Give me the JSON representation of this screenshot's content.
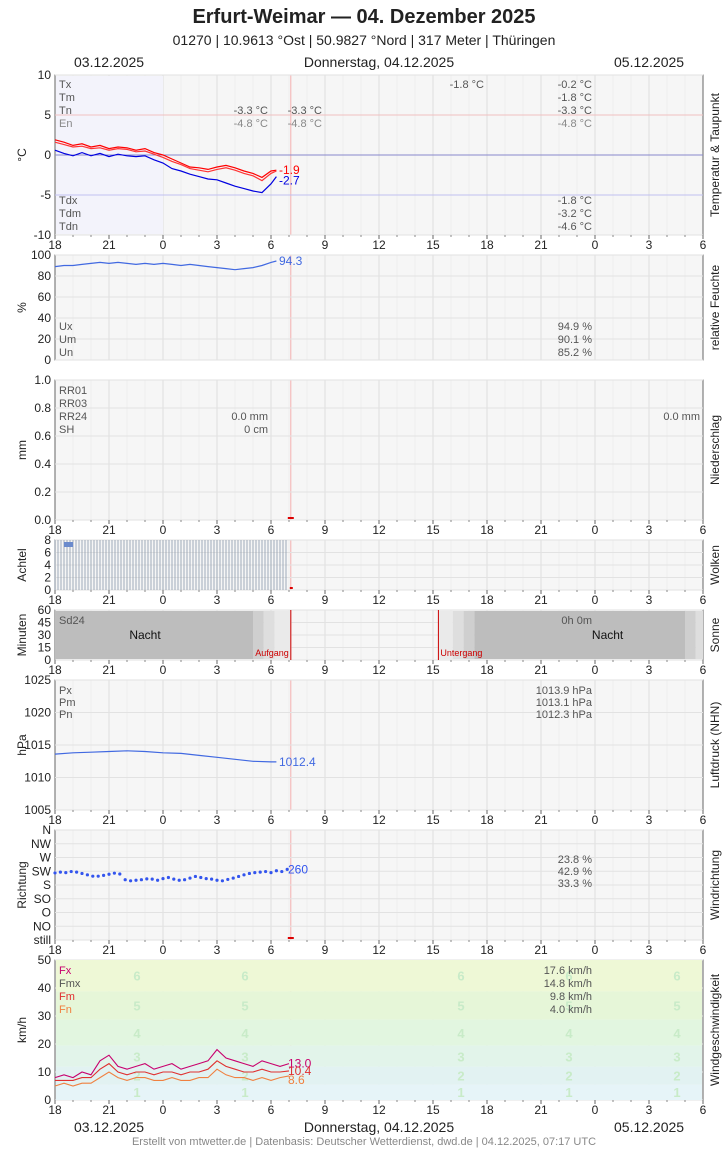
{
  "header": {
    "title": "Erfurt-Weimar  —  04. Dezember 2025",
    "subtitle": "01270  |  10.9613 °Ost  |  50.9827 °Nord  |  317 Meter  |  Thüringen"
  },
  "dates": {
    "left": "03.12.2025",
    "center": "Donnerstag, 04.12.2025",
    "right": "05.12.2025"
  },
  "footer": "Erstellt von mtwetter.de | Datenbasis: Deutscher Wetterdienst, dwd.de | 04.12.2025, 07:17 UTC",
  "x_ticks": [
    "18",
    "21",
    "0",
    "3",
    "6",
    "9",
    "12",
    "15",
    "18",
    "21",
    "0",
    "3",
    "6"
  ],
  "chart_data": [
    {
      "id": "temp",
      "type": "line",
      "side_label": "Temperatur & Taupunkt",
      "ylabel": "°C",
      "ylim": [
        -10,
        10
      ],
      "yticks": [
        "10",
        "5",
        "0",
        "-5",
        "-10"
      ],
      "stat_labels": [
        "Tx",
        "Tm",
        "Tn",
        "En",
        "Tdx",
        "Tdm",
        "Tdn"
      ],
      "stat_values_day1": {
        "Tn": "-3.3 °C",
        "En": "-4.8 °C"
      },
      "stat_values_day1b": {
        "Tn": "-3.3 °C",
        "En": "-4.8 °C"
      },
      "stat_values_day2": {
        "Tx": "-0.2 °C",
        "Tm": "-1.8 °C",
        "Tn": "-3.3 °C",
        "En": "-4.8 °C",
        "Tdx": "-1.8 °C",
        "Tdm": "-3.2 °C",
        "Tdn": "-4.6 °C"
      },
      "extra_label": "-1.8 °C",
      "end_labels": [
        "-1.9",
        "-2.7"
      ],
      "x": [
        -6,
        -5.5,
        -5,
        -4.5,
        -4,
        -3.5,
        -3,
        -2.5,
        -2,
        -1.5,
        -1,
        -0.5,
        0,
        0.5,
        1,
        1.5,
        2,
        2.5,
        3,
        3.5,
        4,
        4.5,
        5,
        5.5,
        6,
        6.3
      ],
      "series": [
        {
          "name": "Tx",
          "values": [
            1.9,
            1.6,
            1.2,
            1.4,
            1.0,
            1.2,
            0.8,
            1.0,
            0.9,
            0.6,
            0.8,
            0.3,
            0,
            -0.5,
            -1.0,
            -1.5,
            -1.6,
            -1.8,
            -1.5,
            -1.3,
            -1.6,
            -2.0,
            -2.3,
            -2.8,
            -2.0,
            -1.9
          ]
        },
        {
          "name": "Tm",
          "values": [
            1.6,
            1.3,
            1.0,
            1.1,
            0.8,
            0.9,
            0.6,
            0.8,
            0.7,
            0.4,
            0.5,
            0.1,
            -0.3,
            -0.8,
            -1.2,
            -1.7,
            -1.9,
            -2.1,
            -1.8,
            -1.6,
            -1.9,
            -2.3,
            -2.6,
            -3.2,
            -2.3,
            -2.0
          ]
        },
        {
          "name": "Td",
          "values": [
            0.6,
            0.2,
            -0.1,
            0.3,
            -0.1,
            0.2,
            -0.2,
            0.1,
            -0.1,
            -0.2,
            -0.1,
            -0.6,
            -1.0,
            -1.7,
            -2.0,
            -2.4,
            -2.7,
            -3.0,
            -3.1,
            -3.5,
            -3.9,
            -4.2,
            -4.5,
            -4.7,
            -3.6,
            -2.7
          ]
        }
      ],
      "colors": [
        "#ff0000",
        "#ff3333",
        "#0000e0"
      ]
    },
    {
      "id": "humidity",
      "type": "line",
      "side_label": "relative Feuchte",
      "ylabel": "%",
      "ylim": [
        0,
        100
      ],
      "yticks": [
        "100",
        "80",
        "60",
        "40",
        "20",
        "0"
      ],
      "stat_labels": [
        "Ux",
        "Um",
        "Un"
      ],
      "stat_values_day2": {
        "Ux": "94.9 %",
        "Um": "90.1 %",
        "Un": "85.2 %"
      },
      "end_label": "94.3",
      "x": [
        -6,
        -5.5,
        -5,
        -4.5,
        -4,
        -3.5,
        -3,
        -2.5,
        -2,
        -1.5,
        -1,
        -0.5,
        0,
        0.5,
        1,
        1.5,
        2,
        2.5,
        3,
        3.5,
        4,
        4.5,
        5,
        5.5,
        6,
        6.3
      ],
      "values": [
        89,
        90,
        90,
        91,
        92,
        93,
        92,
        93,
        92,
        91,
        92,
        91,
        92,
        91,
        90,
        91,
        90,
        89,
        88,
        87,
        86,
        87,
        88,
        90,
        93,
        94.3
      ],
      "color": "#4169e1"
    },
    {
      "id": "precip",
      "type": "bar",
      "side_label": "Niederschlag",
      "ylabel": "mm",
      "ylim": [
        0,
        1
      ],
      "yticks": [
        "1.0",
        "0.8",
        "0.6",
        "0.4",
        "0.2",
        "0.0"
      ],
      "stat_labels": [
        "RR01",
        "RR03",
        "RR24",
        "SH"
      ],
      "stat_values_day1": {
        "RR24": "0.0 mm",
        "SH": "0 cm"
      },
      "stat_values_day2": {
        "RR24": "0.0 mm"
      }
    },
    {
      "id": "clouds",
      "type": "bar",
      "side_label": "Wolken",
      "ylabel": "Achtel",
      "ylim": [
        0,
        8
      ],
      "yticks": [
        "8",
        "6",
        "4",
        "2",
        "0"
      ],
      "hours_start": -6,
      "hours_end": 7,
      "value": 8
    },
    {
      "id": "sun",
      "type": "bar",
      "side_label": "Sonne",
      "ylabel": "Minuten",
      "ylim": [
        0,
        60
      ],
      "yticks": [
        "60",
        "45",
        "30",
        "15",
        "0"
      ],
      "stat_labels": [
        "Sd24"
      ],
      "stat_value_day2": "0h 0m",
      "night_label": "Nacht",
      "sunrise_label": "Aufgang",
      "sunset_label": "Untergang",
      "sunrise_hour": 7.1,
      "sunset_hour": 15.3
    },
    {
      "id": "pressure",
      "type": "line",
      "side_label": "Luftdruck (NHN)",
      "ylabel": "hPa",
      "ylim": [
        1005,
        1025
      ],
      "yticks": [
        "1025",
        "1020",
        "1015",
        "1010",
        "1005"
      ],
      "stat_labels": [
        "Px",
        "Pm",
        "Pn"
      ],
      "stat_values_day2": {
        "Px": "1013.9 hPa",
        "Pm": "1013.1 hPa",
        "Pn": "1012.3 hPa"
      },
      "end_label": "1012.4",
      "x": [
        -6,
        -5,
        -4,
        -3,
        -2,
        -1,
        0,
        1,
        2,
        3,
        4,
        5,
        6,
        6.3
      ],
      "values": [
        1013.6,
        1013.8,
        1013.9,
        1014.0,
        1014.1,
        1014.0,
        1013.8,
        1013.7,
        1013.4,
        1013.1,
        1012.8,
        1012.5,
        1012.4,
        1012.4
      ],
      "color": "#4169e1"
    },
    {
      "id": "wind_dir",
      "type": "scatter",
      "side_label": "Windrichtung",
      "ylabel": "Richtung",
      "ylim": [
        0,
        9
      ],
      "ytick_labels": [
        "still",
        "NO",
        "O",
        "SO",
        "S",
        "SW",
        "W",
        "NW",
        "N"
      ],
      "stat_values_day2": [
        "23.8 %",
        "42.9 %",
        "33.3 %"
      ],
      "end_label": "260",
      "x": [
        -6,
        -5.7,
        -5.4,
        -5.1,
        -4.8,
        -4.5,
        -4.2,
        -3.9,
        -3.6,
        -3.3,
        -3.0,
        -2.7,
        -2.4,
        -2.1,
        -1.8,
        -1.5,
        -1.2,
        -0.9,
        -0.6,
        -0.3,
        0,
        0.3,
        0.6,
        0.9,
        1.2,
        1.5,
        1.8,
        2.1,
        2.4,
        2.7,
        3.0,
        3.3,
        3.6,
        3.9,
        4.2,
        4.5,
        4.8,
        5.1,
        5.4,
        5.7,
        6.0,
        6.3,
        6.6,
        6.9
      ],
      "values": [
        247,
        250,
        248,
        252,
        250,
        245,
        240,
        235,
        235,
        238,
        242,
        246,
        243,
        222,
        218,
        220,
        222,
        225,
        224,
        220,
        226,
        230,
        224,
        220,
        222,
        228,
        234,
        230,
        226,
        224,
        220,
        218,
        223,
        228,
        234,
        240,
        245,
        248,
        250,
        252,
        248,
        255,
        252,
        260
      ],
      "color": "#3355ee"
    },
    {
      "id": "wind_speed",
      "type": "line",
      "side_label": "Windgeschwindigkeit",
      "ylabel": "km/h",
      "ylim": [
        0,
        50
      ],
      "yticks": [
        "50",
        "40",
        "30",
        "20",
        "10",
        "0"
      ],
      "stat_labels": [
        "Fx",
        "Fmx",
        "Fm",
        "Fn"
      ],
      "stat_values_day2": {
        "Fx": "17.6 km/h",
        "Fmx": "14.8 km/h",
        "Fm": "9.8 km/h",
        "Fn": "4.0 km/h"
      },
      "bft_labels": [
        "6",
        "5",
        "4",
        "3",
        "2",
        "1"
      ],
      "end_labels": [
        "13.0",
        "10.4",
        "8.6"
      ],
      "x": [
        -6,
        -5.5,
        -5,
        -4.5,
        -4,
        -3.5,
        -3,
        -2.5,
        -2,
        -1.5,
        -1,
        -0.5,
        0,
        0.5,
        1,
        1.5,
        2,
        2.5,
        3,
        3.5,
        4,
        4.5,
        5,
        5.5,
        6,
        6.5,
        7
      ],
      "series": [
        {
          "name": "Fx",
          "values": [
            8,
            9,
            8,
            10,
            9,
            14,
            16,
            12,
            11,
            12,
            13,
            11,
            12,
            13,
            11,
            12,
            13,
            14,
            18,
            15,
            14,
            13,
            12,
            14,
            13,
            12,
            13
          ]
        },
        {
          "name": "Fm",
          "values": [
            7,
            7,
            7,
            8,
            8,
            11,
            13,
            10,
            9,
            10,
            10,
            9,
            10,
            10,
            9,
            10,
            10,
            11,
            14,
            12,
            11,
            10,
            10,
            11,
            10,
            10,
            10.4
          ]
        },
        {
          "name": "Fn",
          "values": [
            5,
            6,
            5,
            6,
            6,
            8,
            10,
            8,
            7,
            8,
            8,
            7,
            7,
            8,
            7,
            7,
            8,
            8,
            11,
            9,
            8,
            8,
            7,
            8,
            7,
            8,
            8.6
          ]
        }
      ],
      "colors": [
        "#c8006e",
        "#e03030",
        "#f08040"
      ]
    }
  ]
}
